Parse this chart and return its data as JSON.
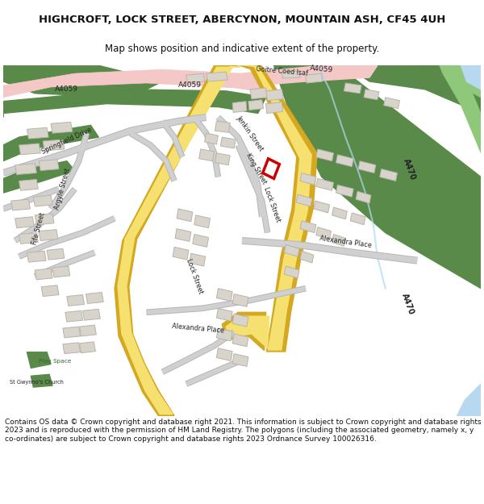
{
  "title_line1": "HIGHCROFT, LOCK STREET, ABERCYNON, MOUNTAIN ASH, CF45 4UH",
  "title_line2": "Map shows position and indicative extent of the property.",
  "footer": "Contains OS data © Crown copyright and database right 2021. This information is subject to Crown copyright and database rights 2023 and is reproduced with the permission of HM Land Registry. The polygons (including the associated geometry, namely x, y co-ordinates) are subject to Crown copyright and database rights 2023 Ordnance Survey 100026316.",
  "map_bg": "#ffffff",
  "green_dark": "#5a8a4a",
  "green_light": "#8fc87a",
  "pink_road": "#f5c8c8",
  "yellow_road": "#f5e070",
  "yellow_border": "#d4a820",
  "road_gray": "#d8d8d8",
  "road_outline": "#bbbbbb",
  "building_fill": "#d8d4cc",
  "building_stroke": "#b8b4ac",
  "blue_water": "#b8d8f0",
  "blue_light": "#c8e8f8",
  "highlight_red": "#cc0000",
  "text_dark": "#333333",
  "title_color": "#111111",
  "green_patch": "#7aaa5a"
}
